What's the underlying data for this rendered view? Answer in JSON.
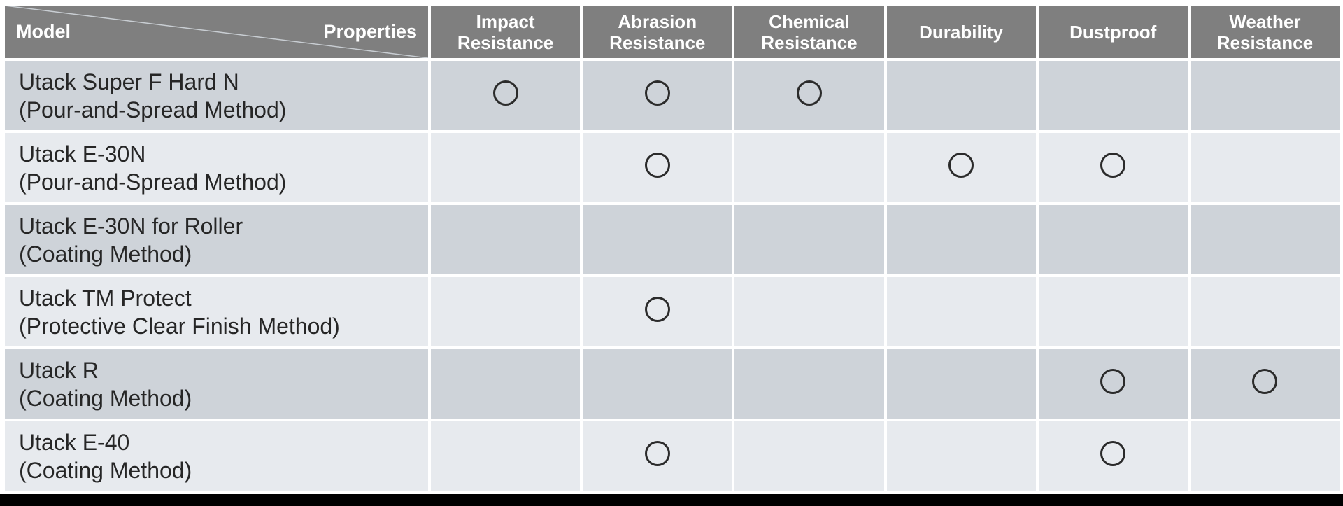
{
  "colors": {
    "header_bg": "#7f7f7f",
    "header_text": "#ffffff",
    "row_odd_bg": "#ced3d9",
    "row_even_bg": "#e7eaee",
    "body_text": "#262626",
    "mark_color": "#2b2b2b",
    "divider": "#ffffff",
    "diagonal_line": "#c9ced3",
    "bottom_bar": "#000000"
  },
  "chart_data": {
    "type": "table",
    "title": "",
    "corner": {
      "left_label": "Model",
      "right_label": "Properties"
    },
    "columns": [
      "Impact\nResistance",
      "Abrasion\nResistance",
      "Chemical\nResistance",
      "Durability",
      "Dustproof",
      "Weather\nResistance"
    ],
    "mark_symbol": "○",
    "rows": [
      {
        "model": "Utack Super F Hard N",
        "method": "(Pour-and-Spread Method)",
        "marks": [
          true,
          true,
          true,
          false,
          false,
          false
        ]
      },
      {
        "model": "Utack E-30N",
        "method": "(Pour-and-Spread Method)",
        "marks": [
          false,
          true,
          false,
          true,
          true,
          false
        ]
      },
      {
        "model": "Utack E-30N for Roller",
        "method": "(Coating Method)",
        "marks": [
          false,
          false,
          false,
          false,
          false,
          false
        ]
      },
      {
        "model": "Utack TM Protect",
        "method": "(Protective Clear Finish Method)",
        "marks": [
          false,
          true,
          false,
          false,
          false,
          false
        ]
      },
      {
        "model": "Utack R",
        "method": "(Coating Method)",
        "marks": [
          false,
          false,
          false,
          false,
          true,
          true
        ]
      },
      {
        "model": "Utack E-40",
        "method": "(Coating Method)",
        "marks": [
          false,
          true,
          false,
          false,
          true,
          false
        ]
      }
    ]
  }
}
